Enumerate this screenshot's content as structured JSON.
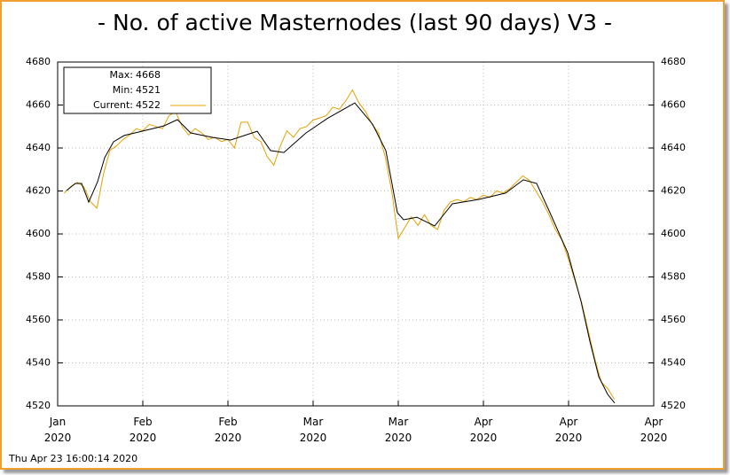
{
  "chart_data": {
    "type": "line",
    "title": "- No. of active Masternodes (last 90 days) V3 -",
    "timestamp": "Thu Apr 23 16:00:14 2020",
    "xlim": [
      0,
      91
    ],
    "xticks": [
      {
        "value": 0,
        "label": "Jan\n2020"
      },
      {
        "value": 13,
        "label": "Feb\n2020"
      },
      {
        "value": 26,
        "label": "Feb\n2020"
      },
      {
        "value": 39,
        "label": "Mar\n2020"
      },
      {
        "value": 52,
        "label": "Mar\n2020"
      },
      {
        "value": 65,
        "label": "Apr\n2020"
      },
      {
        "value": 78,
        "label": "Apr\n2020"
      },
      {
        "value": 91,
        "label": "Apr\n2020"
      }
    ],
    "ylim": [
      4520,
      4680
    ],
    "yticks": [
      4520,
      4540,
      4560,
      4580,
      4600,
      4620,
      4640,
      4660,
      4680
    ],
    "grid": true,
    "legend": [
      {
        "label": "Max:",
        "value": 4668
      },
      {
        "label": "Min:",
        "value": 4521
      },
      {
        "label": "Current:",
        "value": 4522
      }
    ],
    "series": [
      {
        "color": "#e8a000",
        "x": [
          1,
          2,
          3,
          4,
          5,
          6,
          7,
          8,
          9,
          10,
          11,
          12,
          13,
          14,
          15,
          16,
          17,
          18,
          19,
          20,
          21,
          22,
          23,
          24,
          25,
          26,
          27,
          28,
          29,
          30,
          31,
          32,
          33,
          34,
          35,
          36,
          37,
          38,
          39,
          40,
          41,
          42,
          43,
          44,
          45,
          46,
          47,
          48,
          49,
          50,
          51,
          52,
          53,
          54,
          55,
          56,
          57,
          58,
          59,
          60,
          61,
          62,
          63,
          64,
          65,
          66,
          67,
          68,
          69,
          70,
          71,
          72,
          73,
          74,
          75,
          76,
          77,
          78,
          79,
          80,
          81,
          82,
          83,
          84,
          85
        ],
        "values": [
          4619,
          4622,
          4624,
          4622,
          4615,
          4612,
          4628,
          4639,
          4641,
          4644,
          4646,
          4649,
          4648,
          4651,
          4650,
          4649,
          4655,
          4657,
          4650,
          4646,
          4649,
          4647,
          4644,
          4645,
          4643,
          4644,
          4640,
          4652,
          4652,
          4645,
          4643,
          4636,
          4632,
          4641,
          4648,
          4645,
          4649,
          4650,
          4653,
          4654,
          4655,
          4659,
          4658,
          4662,
          4667,
          4661,
          4657,
          4651,
          4647,
          4636,
          4620,
          4598,
          4603,
          4608,
          4604,
          4609,
          4604,
          4602,
          4611,
          4615,
          4616,
          4615,
          4617,
          4616,
          4618,
          4617,
          4620,
          4619,
          4621,
          4624,
          4627,
          4625,
          4620,
          4615,
          4609,
          4602,
          4597,
          4588,
          4578,
          4568,
          4555,
          4542,
          4531,
          4528,
          4523
        ]
      },
      {
        "color": "#000000",
        "x": [
          1.35,
          2.71,
          3.66,
          4.74,
          6.09,
          7.18,
          8.53,
          10.16,
          12.86,
          16.25,
          18.28,
          20.31,
          23.7,
          26.41,
          30.47,
          32.5,
          34.53,
          37.92,
          41.3,
          45.37,
          48.07,
          50.11,
          51.86,
          52.81,
          54.84,
          57.55,
          60.26,
          64.32,
          68.39,
          71.09,
          73.13,
          75.16,
          77.87,
          79.9,
          81.25,
          82.61,
          83.96,
          85.04
        ],
        "values": [
          4620.2,
          4623.5,
          4623.5,
          4614.8,
          4624.3,
          4635.5,
          4642.9,
          4645.8,
          4647.8,
          4650.3,
          4653.2,
          4647.0,
          4644.9,
          4643.7,
          4647.8,
          4638.8,
          4637.9,
          4647.0,
          4654.0,
          4661.0,
          4651.1,
          4638.8,
          4609.9,
          4606.6,
          4607.8,
          4603.7,
          4614.0,
          4616.1,
          4619.0,
          4625.2,
          4623.5,
          4609.9,
          4591.3,
          4568.7,
          4550.1,
          4533.6,
          4525.4,
          4521.3
        ]
      }
    ]
  }
}
